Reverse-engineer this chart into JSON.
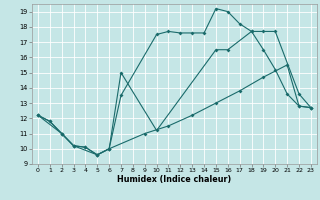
{
  "xlabel": "Humidex (Indice chaleur)",
  "background_color": "#c5e6e6",
  "line_color": "#1a6b6b",
  "grid_color": "#ffffff",
  "xlim": [
    -0.5,
    23.5
  ],
  "ylim": [
    9,
    19.5
  ],
  "xticks": [
    0,
    1,
    2,
    3,
    4,
    5,
    6,
    7,
    8,
    9,
    10,
    11,
    12,
    13,
    14,
    15,
    16,
    17,
    18,
    19,
    20,
    21,
    22,
    23
  ],
  "yticks": [
    9,
    10,
    11,
    12,
    13,
    14,
    15,
    16,
    17,
    18,
    19
  ],
  "line1_x": [
    0,
    1,
    2,
    3,
    4,
    5,
    6,
    7,
    10,
    11,
    12,
    13,
    14,
    15,
    16,
    17,
    18,
    19,
    20,
    21,
    22,
    23
  ],
  "line1_y": [
    12.2,
    11.8,
    11.0,
    10.2,
    10.1,
    9.6,
    10.0,
    13.5,
    17.5,
    17.7,
    17.6,
    17.6,
    17.6,
    19.2,
    19.0,
    18.2,
    17.7,
    16.5,
    15.2,
    13.6,
    12.8,
    12.7
  ],
  "line2_x": [
    0,
    2,
    3,
    5,
    6,
    7,
    10,
    15,
    16,
    18,
    19,
    20,
    22,
    23
  ],
  "line2_y": [
    12.2,
    11.0,
    10.2,
    9.6,
    10.0,
    15.0,
    11.2,
    16.5,
    16.5,
    17.7,
    17.7,
    17.7,
    13.6,
    12.7
  ],
  "line3_x": [
    0,
    1,
    2,
    3,
    4,
    5,
    6,
    9,
    11,
    13,
    15,
    17,
    19,
    21,
    22,
    23
  ],
  "line3_y": [
    12.2,
    11.8,
    11.0,
    10.2,
    10.1,
    9.6,
    10.0,
    11.0,
    11.5,
    12.2,
    13.0,
    13.8,
    14.7,
    15.5,
    12.8,
    12.7
  ]
}
